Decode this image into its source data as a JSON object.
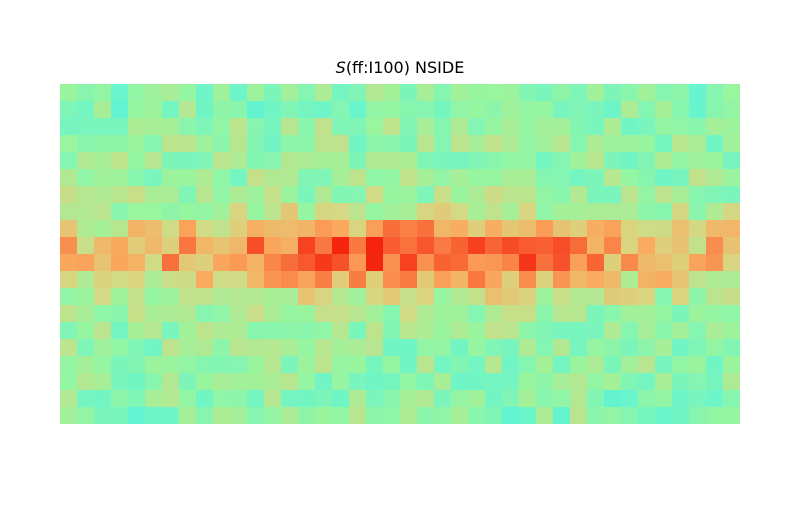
{
  "chart_data": {
    "type": "heatmap",
    "title_symbol": "S",
    "title_rest": "(ff:I100) NSIDE",
    "colormap": "rainbow",
    "colors": {
      "low": "#2fd6e6",
      "mid": "#98f59e",
      "high": "#f5230f"
    },
    "projection": "full-sky equirectangular (4 segments)",
    "grid_cols": 40,
    "grid_rows": 20
  }
}
